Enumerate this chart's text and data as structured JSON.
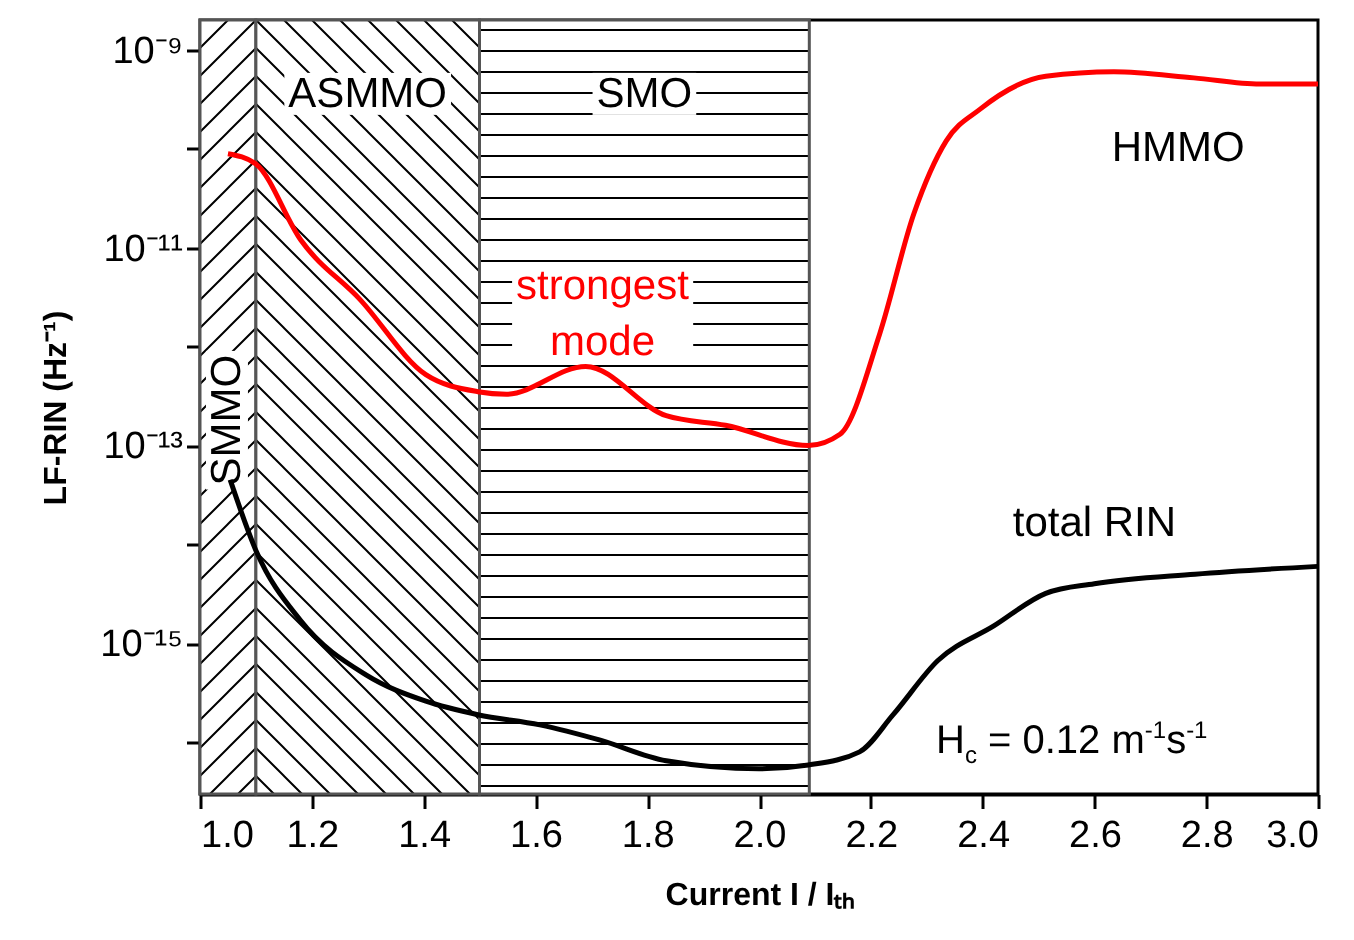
{
  "chart_data": {
    "type": "line",
    "xlabel": "Current  I / Iₜₕ",
    "ylabel": "LF-RIN (Hz⁻¹)",
    "log": true,
    "xlim": [
      1.0,
      3.0
    ],
    "xticks": [
      {
        "value": 1,
        "label": "1.0"
      },
      1.2,
      1.4,
      1.6,
      1.8,
      {
        "value": 2,
        "label": "2.0"
      },
      2.2,
      2.4,
      2.6,
      2.8,
      {
        "value": 3,
        "label": "3.0"
      }
    ],
    "ylim": [
      3e-17,
      2e-09
    ],
    "yticks": [
      {
        "value": 1e-09,
        "label": "10⁻⁹"
      },
      {
        "value": 1e-10,
        "label": null
      },
      {
        "value": 1e-11,
        "label": "10⁻¹¹"
      },
      {
        "value": 1e-12,
        "label": null
      },
      {
        "value": 1e-13,
        "label": "10⁻¹³"
      },
      {
        "value": 1e-14,
        "label": null
      },
      {
        "value": 1e-15,
        "label": "10⁻¹⁵"
      },
      {
        "value": 1e-16,
        "label": null
      }
    ],
    "bands": [
      {
        "axis": "x",
        "from": 1.0,
        "to": 1.1,
        "label": "SMMO"
      },
      {
        "axis": "x",
        "from": 1.1,
        "to": 1.5,
        "label": "ASMMO"
      },
      {
        "axis": "x",
        "from": 1.5,
        "to": 2.09,
        "label": "SMO"
      }
    ],
    "series": [
      {
        "name": "strongest mode",
        "color": "#ff0000",
        "x": [
          1.05,
          1.1,
          1.18,
          1.286,
          1.404,
          1.497,
          1.548,
          1.69,
          1.834,
          1.94,
          2.088,
          2.145,
          2.216,
          2.277,
          2.335,
          2.395,
          2.513,
          2.635,
          2.778,
          2.896,
          3.0
        ],
        "values": [
          8.9e-11,
          7e-11,
          1.2e-11,
          3e-12,
          5.2e-13,
          3.5e-13,
          3.3e-13,
          6.3e-13,
          2e-13,
          1.6e-13,
          1e-13,
          1.3e-13,
          1.35e-12,
          2.2e-11,
          1.2e-10,
          2.5e-10,
          5.4e-10,
          6e-10,
          5.2e-10,
          4.5e-10,
          4.5e-10
        ]
      },
      {
        "name": "total RIN",
        "color": "#000000",
        "x": [
          1.054,
          1.1,
          1.18,
          1.297,
          1.404,
          1.497,
          1.608,
          1.716,
          1.834,
          2.0,
          2.088,
          2.18,
          2.24,
          2.32,
          2.42,
          2.513,
          2.6,
          2.78,
          3.0
        ],
        "values": [
          4.5e-14,
          8.7e-15,
          1.7e-15,
          4.8e-16,
          2.6e-16,
          1.9e-16,
          1.5e-16,
          1.05e-16,
          6.5e-17,
          5.4e-17,
          5.9e-17,
          8e-17,
          1.9e-16,
          6.7e-16,
          1.5e-15,
          3.2e-15,
          4e-15,
          5e-15,
          6e-15
        ]
      }
    ],
    "annotations": [
      "HMMO",
      "H$_{c}$ = 0.12 m$^{-1}$s$^{-1}$"
    ]
  }
}
